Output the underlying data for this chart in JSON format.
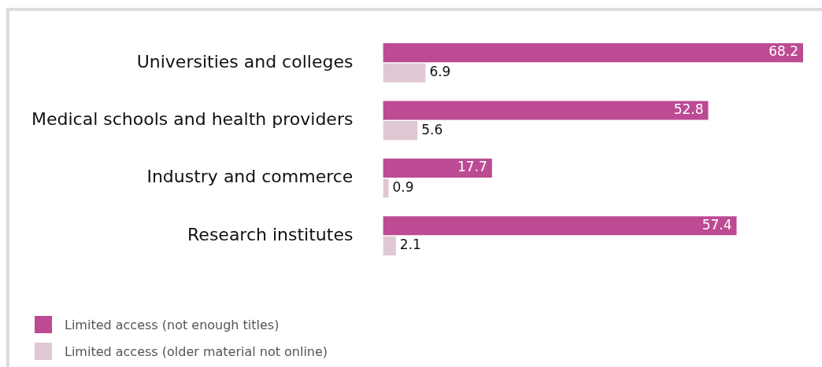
{
  "chart_data": {
    "type": "bar",
    "orientation": "horizontal",
    "categories": [
      "Universities and colleges",
      "Medical schools and health providers",
      "Industry and commerce",
      "Research institutes"
    ],
    "series": [
      {
        "name": "Limited access (not enough titles)",
        "color": "#bc4b93",
        "values": [
          68.2,
          52.8,
          17.7,
          57.4
        ]
      },
      {
        "name": "Limited access (older material not online)",
        "color": "#dfc8d3",
        "values": [
          6.9,
          5.6,
          0.9,
          2.1
        ]
      }
    ],
    "data_labels": true,
    "legend": "bottom left"
  }
}
